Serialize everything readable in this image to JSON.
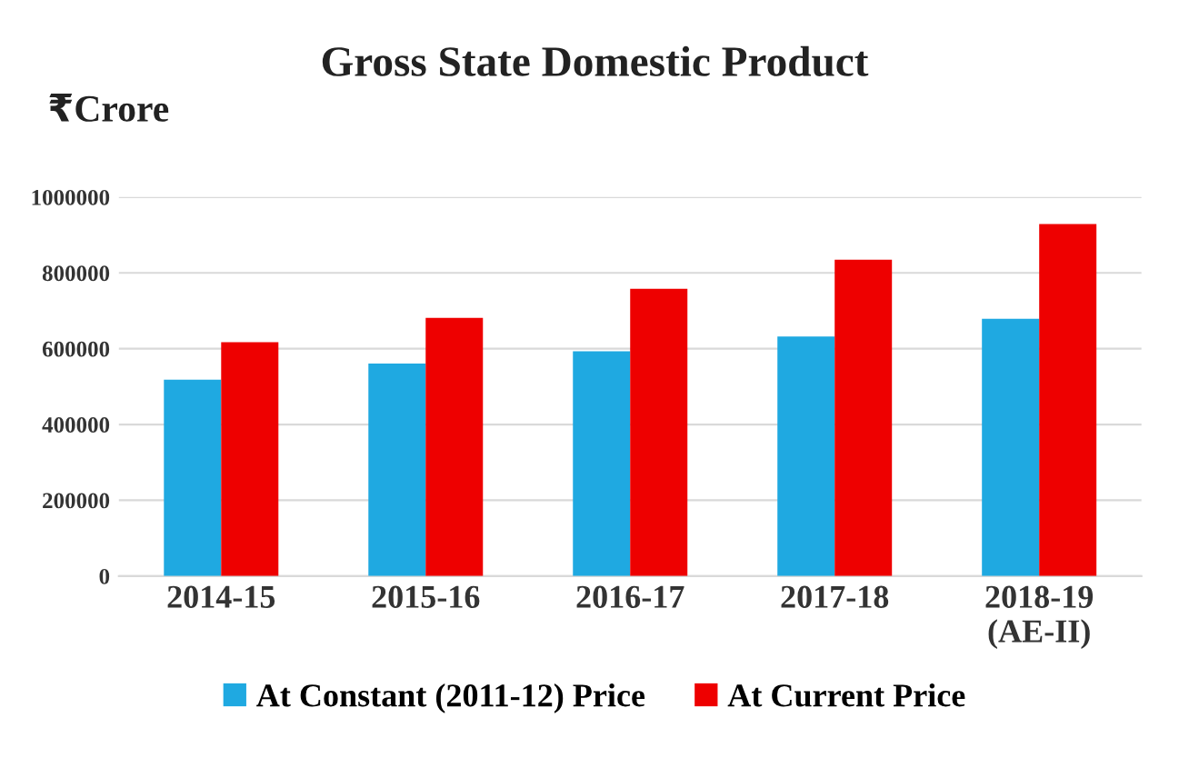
{
  "chart_data": {
    "type": "bar",
    "title": "Gross State Domestic Product",
    "ylabel": "₹Crore",
    "categories": [
      "2014-15",
      "2015-16",
      "2016-17",
      "2017-18",
      "2018-19\n(AE-II)"
    ],
    "series": [
      {
        "name": "At Constant (2011-12) Price",
        "color": "#1fa9e1",
        "values": [
          518000,
          561000,
          593000,
          632000,
          679000
        ]
      },
      {
        "name": "At Current Price",
        "color": "#ee0000",
        "values": [
          617000,
          681000,
          758000,
          835000,
          929000
        ]
      }
    ],
    "ylim": [
      0,
      1000000
    ],
    "yticks": [
      0,
      200000,
      400000,
      600000,
      800000,
      1000000
    ],
    "grid": "y",
    "legend": "bottom"
  }
}
